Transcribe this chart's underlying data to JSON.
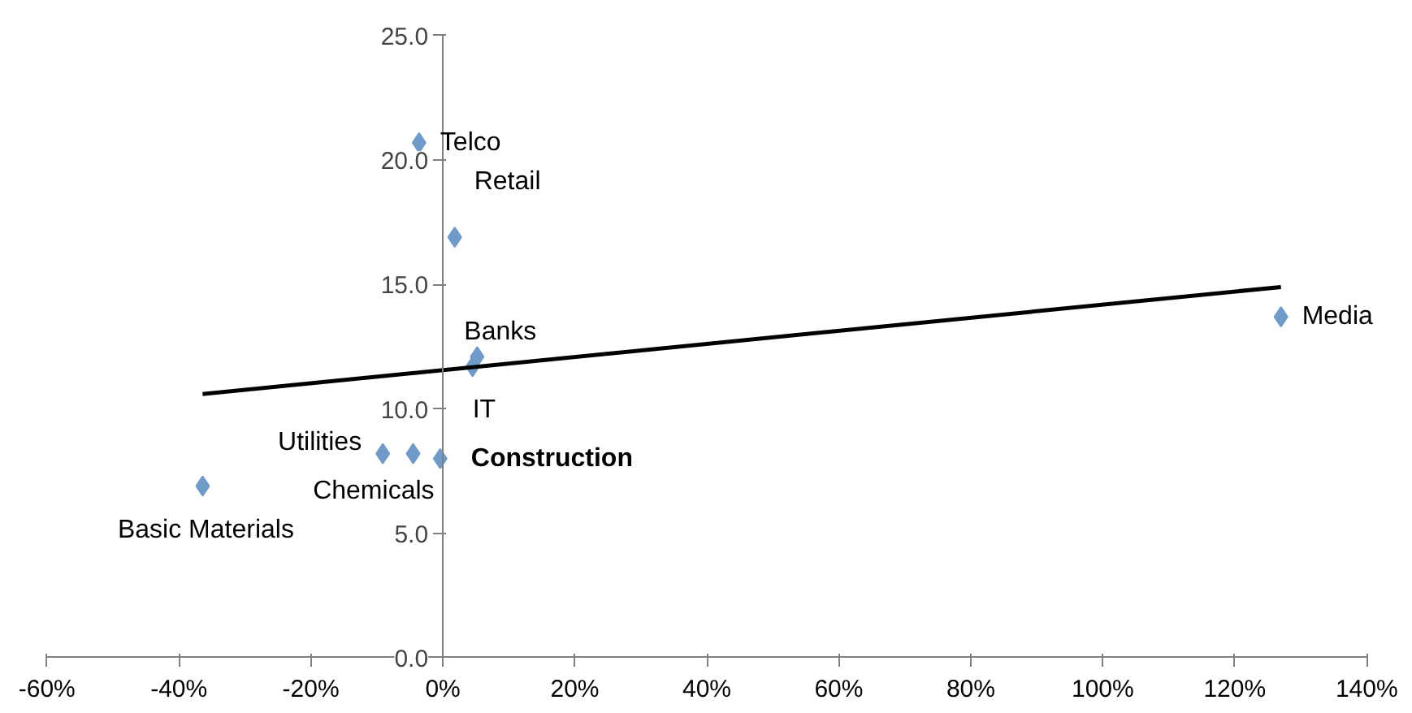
{
  "chart_data": {
    "type": "scatter",
    "xlim": [
      -60,
      140
    ],
    "ylim": [
      0,
      25
    ],
    "xticks": [
      {
        "value": -60,
        "label": "-60%"
      },
      {
        "value": -40,
        "label": "-40%"
      },
      {
        "value": -20,
        "label": "-20%"
      },
      {
        "value": 0,
        "label": "0%"
      },
      {
        "value": 20,
        "label": "20%"
      },
      {
        "value": 40,
        "label": "40%"
      },
      {
        "value": 60,
        "label": "60%"
      },
      {
        "value": 80,
        "label": "80%"
      },
      {
        "value": 100,
        "label": "100%"
      },
      {
        "value": 120,
        "label": "120%"
      },
      {
        "value": 140,
        "label": "140%"
      }
    ],
    "yticks": [
      {
        "value": 0,
        "label": "0.0"
      },
      {
        "value": 5,
        "label": "5.0"
      },
      {
        "value": 10,
        "label": "10.0"
      },
      {
        "value": 15,
        "label": "15.0"
      },
      {
        "value": 20,
        "label": "20.0"
      },
      {
        "value": 25,
        "label": "25.0"
      }
    ],
    "grid": false,
    "marker": "diamond",
    "series": [
      {
        "color": "#6f9bcb",
        "x": [
          -3.6,
          1.8,
          5.2,
          4.5,
          127.0,
          -9.1,
          -4.5,
          -0.4,
          -36.4
        ],
        "values": [
          20.7,
          16.9,
          12.1,
          11.7,
          13.7,
          8.2,
          8.2,
          8.0,
          6.9
        ]
      },
      {
        "type": "line",
        "color": "#000000",
        "line_style": "solid",
        "marker": "none",
        "x": [
          -36.4,
          127.0
        ],
        "values": [
          10.6,
          14.9
        ]
      }
    ],
    "annotations": [
      {
        "text": "Telco",
        "x": -3.6,
        "y": 20.7
      },
      {
        "text": "Retail",
        "x": 1.8,
        "y": 16.9
      },
      {
        "text": "Banks",
        "x": 5.2,
        "y": 12.1
      },
      {
        "text": "IT",
        "x": 4.5,
        "y": 11.7
      },
      {
        "text": "Media",
        "x": 127.0,
        "y": 13.7
      },
      {
        "text": "Utilities",
        "x": -9.1,
        "y": 8.2
      },
      {
        "text": "Chemicals",
        "x": -4.5,
        "y": 8.2
      },
      {
        "text": "Construction",
        "x": -0.4,
        "y": 8.0
      },
      {
        "text": "Basic Materials",
        "x": -36.4,
        "y": 6.9
      }
    ]
  }
}
